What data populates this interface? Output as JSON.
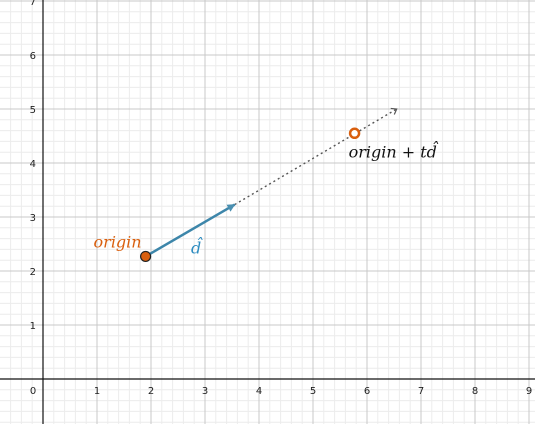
{
  "chart_data": {
    "type": "scatter",
    "xlim": [
      0,
      9
    ],
    "ylim": [
      0,
      7
    ],
    "x_ticks": [
      "0",
      "1",
      "2",
      "3",
      "4",
      "5",
      "6",
      "7",
      "8",
      "9"
    ],
    "y_ticks": [
      "1",
      "2",
      "3",
      "4",
      "5",
      "6",
      "7"
    ],
    "grid": true,
    "origin_point": {
      "x": 1.9,
      "y": 2.27,
      "label": "origin",
      "color": "#d95f0e"
    },
    "direction": {
      "to_x": 3.55,
      "to_y": 3.23,
      "label": "d̂",
      "color": "#2d8cc0"
    },
    "ray": {
      "to_x": 6.55,
      "to_y": 5.0,
      "color": "#555555"
    },
    "hit_point": {
      "x": 5.77,
      "y": 4.55,
      "label": "origin + td̂",
      "color": "#d95f0e"
    }
  }
}
